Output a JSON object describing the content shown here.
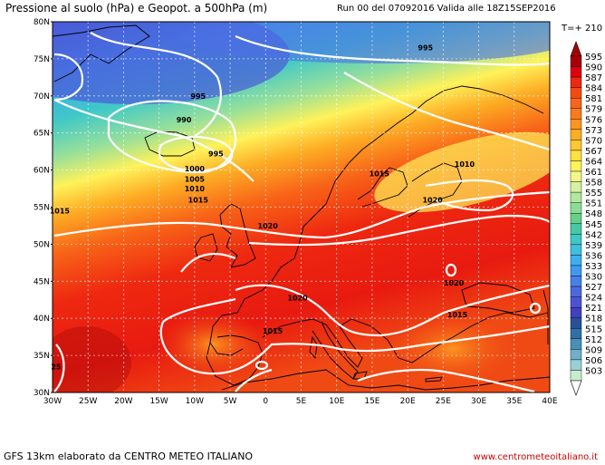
{
  "header": {
    "title_left": "Pressione al suolo (hPa) e Geopot. a 500hPa (m)",
    "title_right": "Run 00 del 07092016  Valida alle 18Z15SEP2016",
    "time_step": "T=+ 210"
  },
  "footer": {
    "credit": "GFS 13km elaborato da CENTRO METEO ITALIANO",
    "website": "www.centrometeoitaliano.it"
  },
  "map": {
    "lat_labels": [
      "80N",
      "75N",
      "70N",
      "65N",
      "60N",
      "55N",
      "50N",
      "45N",
      "40N",
      "35N",
      "30N"
    ],
    "lon_labels": [
      "30W",
      "25W",
      "20W",
      "15W",
      "10W",
      "5W",
      "0",
      "5E",
      "10E",
      "15E",
      "20E",
      "25E",
      "30E",
      "35E",
      "40E"
    ],
    "isobars": [
      {
        "label": "995",
        "lon": 22.5,
        "lat": 76.5
      },
      {
        "label": "995",
        "lon": -9.5,
        "lat": 70.0
      },
      {
        "label": "990",
        "lon": -11.5,
        "lat": 66.8
      },
      {
        "label": "995",
        "lon": -7.0,
        "lat": 62.2
      },
      {
        "label": "1000",
        "lon": -10.0,
        "lat": 60.2
      },
      {
        "label": "1005",
        "lon": -10.0,
        "lat": 58.8
      },
      {
        "label": "1010",
        "lon": -10.0,
        "lat": 57.5
      },
      {
        "label": "1015",
        "lon": -9.5,
        "lat": 56.0
      },
      {
        "label": "1015",
        "lon": -29.0,
        "lat": 54.5
      },
      {
        "label": "1020",
        "lon": 0.3,
        "lat": 52.5
      },
      {
        "label": "1015",
        "lon": 16.0,
        "lat": 59.5
      },
      {
        "label": "1010",
        "lon": 28.0,
        "lat": 60.8
      },
      {
        "label": "1020",
        "lon": 23.5,
        "lat": 56.0
      },
      {
        "label": "1020",
        "lon": 4.5,
        "lat": 42.8
      },
      {
        "label": "1020",
        "lon": 26.5,
        "lat": 44.8
      },
      {
        "label": "1015",
        "lon": 1.0,
        "lat": 38.3
      },
      {
        "label": "1015",
        "lon": 27.0,
        "lat": 40.5
      },
      {
        "label": "25",
        "lon": -29.5,
        "lat": 33.5
      }
    ]
  },
  "legend": {
    "values": [
      "595",
      "590",
      "587",
      "584",
      "581",
      "579",
      "576",
      "573",
      "570",
      "567",
      "564",
      "561",
      "558",
      "555",
      "551",
      "548",
      "545",
      "542",
      "539",
      "536",
      "533",
      "530",
      "527",
      "524",
      "521",
      "518",
      "515",
      "512",
      "509",
      "506",
      "503"
    ],
    "colors": [
      "#a80008",
      "#e00010",
      "#ee2810",
      "#f44a10",
      "#f86418",
      "#fa7a1c",
      "#fc9420",
      "#fdad24",
      "#fec830",
      "#ffe040",
      "#fff25a",
      "#f4f88a",
      "#d4f2a0",
      "#b0e89c",
      "#8cdc94",
      "#64d08c",
      "#48c8a4",
      "#40c8c4",
      "#40c0e0",
      "#3cb0f0",
      "#4098f0",
      "#4880e8",
      "#4c68e0",
      "#4c54d4",
      "#4040c0",
      "#285098",
      "#3070a8",
      "#4890b8",
      "#70b0c8",
      "#98d0d8",
      "#c8ecd0"
    ]
  }
}
